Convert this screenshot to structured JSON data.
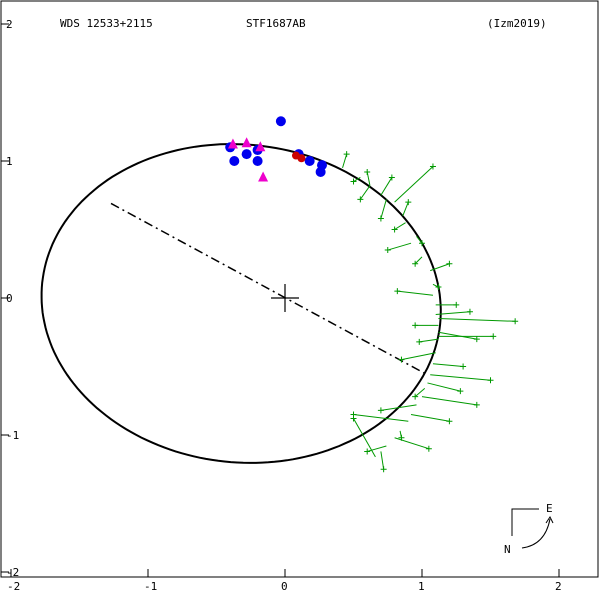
{
  "header": {
    "left": "WDS 12533+2115",
    "center": "STF1687AB",
    "right": "(Izm2019)"
  },
  "compass": {
    "east": "E",
    "north": "N"
  },
  "chart_data": {
    "type": "scatter",
    "title": "",
    "xlim": [
      -2,
      2.2
    ],
    "ylim": [
      -2,
      2.1
    ],
    "x_ticks": [
      {
        "value": -2,
        "label": "-2"
      },
      {
        "value": -1,
        "label": "-1"
      },
      {
        "value": 0,
        "label": "0"
      },
      {
        "value": 1,
        "label": "1"
      },
      {
        "value": 2,
        "label": "2"
      }
    ],
    "y_ticks": [
      {
        "value": 2,
        "label": "2"
      },
      {
        "value": 1,
        "label": "1"
      },
      {
        "value": 0,
        "label": "0"
      },
      {
        "value": -1,
        "label": "-1"
      },
      {
        "value": -2,
        "label": "-2"
      }
    ],
    "orbit_ellipse": {
      "center": [
        -0.32,
        -0.04
      ],
      "semi_axes": [
        1.46,
        1.16
      ],
      "rotation_deg": -6,
      "color": "#000000"
    },
    "line_of_nodes": {
      "from": [
        -1.27,
        0.69
      ],
      "to": [
        1.02,
        -0.55
      ],
      "style": "dash-dot"
    },
    "primary_marker": [
      0,
      0
    ],
    "green_observations": [
      {
        "obs": [
          0.45,
          1.05
        ],
        "pred": [
          0.42,
          0.95
        ]
      },
      {
        "obs": [
          0.5,
          0.85
        ],
        "pred": [
          0.55,
          0.88
        ]
      },
      {
        "obs": [
          0.6,
          0.92
        ],
        "pred": [
          0.62,
          0.82
        ]
      },
      {
        "obs": [
          0.78,
          0.88
        ],
        "pred": [
          0.7,
          0.75
        ]
      },
      {
        "obs": [
          1.08,
          0.96
        ],
        "pred": [
          0.8,
          0.7
        ]
      },
      {
        "obs": [
          0.55,
          0.72
        ],
        "pred": [
          0.62,
          0.82
        ]
      },
      {
        "obs": [
          0.7,
          0.58
        ],
        "pred": [
          0.74,
          0.72
        ]
      },
      {
        "obs": [
          0.9,
          0.7
        ],
        "pred": [
          0.86,
          0.6
        ]
      },
      {
        "obs": [
          0.8,
          0.5
        ],
        "pred": [
          0.88,
          0.55
        ]
      },
      {
        "obs": [
          1.0,
          0.4
        ],
        "pred": [
          0.96,
          0.45
        ]
      },
      {
        "obs": [
          0.75,
          0.35
        ],
        "pred": [
          0.92,
          0.4
        ]
      },
      {
        "obs": [
          0.95,
          0.25
        ],
        "pred": [
          1.0,
          0.3
        ]
      },
      {
        "obs": [
          1.2,
          0.25
        ],
        "pred": [
          1.06,
          0.2
        ]
      },
      {
        "obs": [
          1.12,
          0.08
        ],
        "pred": [
          1.08,
          0.1
        ]
      },
      {
        "obs": [
          0.82,
          0.05
        ],
        "pred": [
          1.08,
          0.02
        ]
      },
      {
        "obs": [
          1.25,
          -0.05
        ],
        "pred": [
          1.1,
          -0.05
        ]
      },
      {
        "obs": [
          1.35,
          -0.1
        ],
        "pred": [
          1.1,
          -0.12
        ]
      },
      {
        "obs": [
          1.68,
          -0.17
        ],
        "pred": [
          1.12,
          -0.15
        ]
      },
      {
        "obs": [
          0.95,
          -0.2
        ],
        "pred": [
          1.12,
          -0.2
        ]
      },
      {
        "obs": [
          1.4,
          -0.3
        ],
        "pred": [
          1.12,
          -0.25
        ]
      },
      {
        "obs": [
          0.98,
          -0.32
        ],
        "pred": [
          1.12,
          -0.3
        ]
      },
      {
        "obs": [
          1.52,
          -0.28
        ],
        "pred": [
          1.12,
          -0.28
        ]
      },
      {
        "obs": [
          0.85,
          -0.45
        ],
        "pred": [
          1.1,
          -0.4
        ]
      },
      {
        "obs": [
          1.3,
          -0.5
        ],
        "pred": [
          1.08,
          -0.48
        ]
      },
      {
        "obs": [
          1.5,
          -0.6
        ],
        "pred": [
          1.06,
          -0.56
        ]
      },
      {
        "obs": [
          1.28,
          -0.68
        ],
        "pred": [
          1.04,
          -0.62
        ]
      },
      {
        "obs": [
          0.95,
          -0.72
        ],
        "pred": [
          1.02,
          -0.66
        ]
      },
      {
        "obs": [
          1.4,
          -0.78
        ],
        "pred": [
          1.0,
          -0.72
        ]
      },
      {
        "obs": [
          0.7,
          -0.82
        ],
        "pred": [
          0.96,
          -0.78
        ]
      },
      {
        "obs": [
          1.2,
          -0.9
        ],
        "pred": [
          0.92,
          -0.85
        ]
      },
      {
        "obs": [
          0.5,
          -0.85
        ],
        "pred": [
          0.9,
          -0.9
        ]
      },
      {
        "obs": [
          0.85,
          -1.02
        ],
        "pred": [
          0.84,
          -0.97
        ]
      },
      {
        "obs": [
          1.05,
          -1.1
        ],
        "pred": [
          0.8,
          -1.02
        ]
      },
      {
        "obs": [
          0.6,
          -1.12
        ],
        "pred": [
          0.74,
          -1.08
        ]
      },
      {
        "obs": [
          0.72,
          -1.25
        ],
        "pred": [
          0.7,
          -1.12
        ]
      },
      {
        "obs": [
          0.5,
          -0.88
        ],
        "pred": [
          0.66,
          -1.16
        ]
      }
    ],
    "blue_points": [
      [
        -0.4,
        1.1
      ],
      [
        -0.37,
        1.0
      ],
      [
        -0.28,
        1.05
      ],
      [
        -0.2,
        1.08
      ],
      [
        -0.2,
        1.0
      ],
      [
        0.1,
        1.05
      ],
      [
        0.18,
        1.0
      ],
      [
        0.27,
        0.97
      ],
      [
        0.26,
        0.92
      ],
      [
        -0.03,
        1.29
      ]
    ],
    "magenta_points": [
      [
        -0.38,
        1.12
      ],
      [
        -0.28,
        1.13
      ],
      [
        -0.18,
        1.1
      ],
      [
        -0.16,
        0.88
      ]
    ],
    "red_points": [
      [
        0.08,
        1.04
      ],
      [
        0.12,
        1.02
      ]
    ]
  }
}
